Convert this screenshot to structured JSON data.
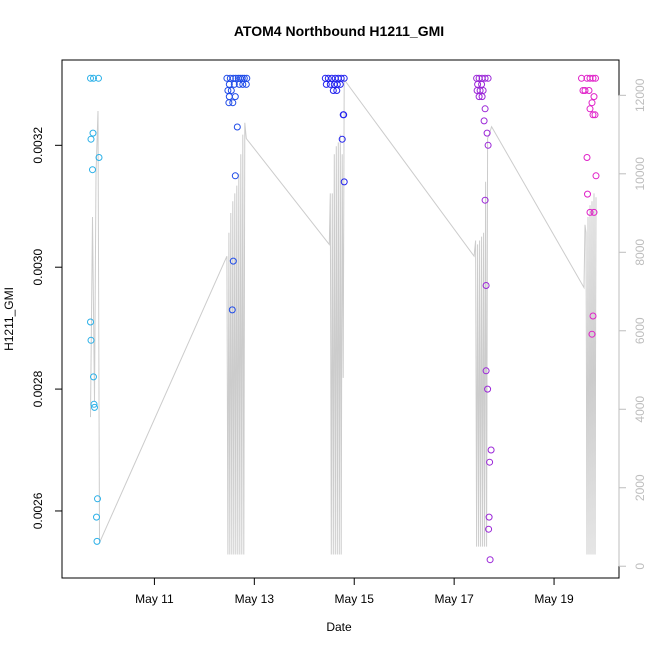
{
  "chart_data": {
    "type": "scatter",
    "title": "ATOM4 Northbound H1211_GMI",
    "xlabel": "Date",
    "ylabel": "H1211_GMI",
    "x_ticks": [
      {
        "value": 11,
        "label": "May 11"
      },
      {
        "value": 13,
        "label": "May 13"
      },
      {
        "value": 15,
        "label": "May 15"
      },
      {
        "value": 17,
        "label": "May 17"
      },
      {
        "value": 19,
        "label": "May 19"
      }
    ],
    "xlim": [
      9.15,
      20.3
    ],
    "y_left": {
      "ticks": [
        0.0026,
        0.0028,
        0.003,
        0.0032
      ],
      "tick_labels": [
        "0.0026",
        "0.0028",
        "0.0030",
        "0.0032"
      ],
      "range": [
        0.00249,
        0.00334
      ]
    },
    "y_right": {
      "ticks": [
        0,
        2000,
        4000,
        6000,
        8000,
        10000,
        12000
      ],
      "tick_labels": [
        "0",
        "2000",
        "4000",
        "6000",
        "8000",
        "10000",
        "12000"
      ],
      "range": [
        -300,
        12900
      ],
      "color": "#bdbdbd"
    },
    "grid": false,
    "legend": "none",
    "series": [
      {
        "color": "#2ab0e8",
        "points": [
          [
            9.72,
            0.00331
          ],
          [
            9.78,
            0.00331
          ],
          [
            9.88,
            0.00331
          ],
          [
            9.77,
            0.00322
          ],
          [
            9.73,
            0.00321
          ],
          [
            9.89,
            0.00318
          ],
          [
            9.76,
            0.00316
          ],
          [
            9.72,
            0.00291
          ],
          [
            9.73,
            0.00288
          ],
          [
            9.78,
            0.00282
          ],
          [
            9.79,
            0.002775
          ],
          [
            9.8,
            0.00277
          ],
          [
            9.86,
            0.00262
          ],
          [
            9.84,
            0.00259
          ],
          [
            9.85,
            0.00255
          ]
        ]
      },
      {
        "color": "#1f4be8",
        "points": [
          [
            12.45,
            0.00331
          ],
          [
            12.52,
            0.00331
          ],
          [
            12.58,
            0.00331
          ],
          [
            12.63,
            0.00331
          ],
          [
            12.68,
            0.00331
          ],
          [
            12.72,
            0.00331
          ],
          [
            12.76,
            0.00331
          ],
          [
            12.8,
            0.00331
          ],
          [
            12.85,
            0.00331
          ],
          [
            12.5,
            0.0033
          ],
          [
            12.6,
            0.0033
          ],
          [
            12.7,
            0.0033
          ],
          [
            12.77,
            0.0033
          ],
          [
            12.84,
            0.0033
          ],
          [
            12.47,
            0.00329
          ],
          [
            12.54,
            0.00329
          ],
          [
            12.62,
            0.00328
          ],
          [
            12.5,
            0.00328
          ],
          [
            12.57,
            0.00327
          ],
          [
            12.66,
            0.00323
          ],
          [
            12.62,
            0.00315
          ],
          [
            12.58,
            0.00301
          ],
          [
            12.56,
            0.00293
          ],
          [
            12.49,
            0.00327
          ]
        ]
      },
      {
        "color": "#2222ee",
        "points": [
          [
            14.42,
            0.00331
          ],
          [
            14.48,
            0.00331
          ],
          [
            14.55,
            0.00331
          ],
          [
            14.62,
            0.00331
          ],
          [
            14.68,
            0.00331
          ],
          [
            14.74,
            0.00331
          ],
          [
            14.8,
            0.00331
          ],
          [
            14.44,
            0.0033
          ],
          [
            14.52,
            0.0033
          ],
          [
            14.6,
            0.0033
          ],
          [
            14.66,
            0.0033
          ],
          [
            14.72,
            0.0033
          ],
          [
            14.58,
            0.00329
          ],
          [
            14.65,
            0.00329
          ],
          [
            14.78,
            0.00325
          ],
          [
            14.79,
            0.00325
          ],
          [
            14.76,
            0.00321
          ],
          [
            14.8,
            0.00314
          ]
        ]
      },
      {
        "color": "#9b27d8",
        "points": [
          [
            17.45,
            0.00331
          ],
          [
            17.5,
            0.00331
          ],
          [
            17.56,
            0.00331
          ],
          [
            17.62,
            0.00331
          ],
          [
            17.68,
            0.00331
          ],
          [
            17.47,
            0.0033
          ],
          [
            17.55,
            0.0033
          ],
          [
            17.46,
            0.00329
          ],
          [
            17.52,
            0.00329
          ],
          [
            17.58,
            0.00329
          ],
          [
            17.5,
            0.00328
          ],
          [
            17.56,
            0.00328
          ],
          [
            17.62,
            0.00326
          ],
          [
            17.6,
            0.00324
          ],
          [
            17.66,
            0.00322
          ],
          [
            17.68,
            0.0032
          ],
          [
            17.62,
            0.00311
          ],
          [
            17.64,
            0.00297
          ],
          [
            17.64,
            0.00283
          ],
          [
            17.67,
            0.0028
          ],
          [
            17.74,
            0.0027
          ],
          [
            17.71,
            0.00268
          ],
          [
            17.7,
            0.00259
          ],
          [
            17.69,
            0.00257
          ],
          [
            17.72,
            0.00252
          ]
        ]
      },
      {
        "color": "#e020c8",
        "points": [
          [
            19.55,
            0.00331
          ],
          [
            19.66,
            0.00331
          ],
          [
            19.72,
            0.00331
          ],
          [
            19.78,
            0.00331
          ],
          [
            19.83,
            0.00331
          ],
          [
            19.58,
            0.00329
          ],
          [
            19.62,
            0.00329
          ],
          [
            19.7,
            0.00329
          ],
          [
            19.8,
            0.00328
          ],
          [
            19.76,
            0.00327
          ],
          [
            19.72,
            0.00326
          ],
          [
            19.78,
            0.00325
          ],
          [
            19.82,
            0.00325
          ],
          [
            19.66,
            0.00318
          ],
          [
            19.84,
            0.00315
          ],
          [
            19.67,
            0.00312
          ],
          [
            19.72,
            0.00309
          ],
          [
            19.8,
            0.00309
          ],
          [
            19.78,
            0.00292
          ],
          [
            19.76,
            0.00289
          ]
        ]
      }
    ],
    "secondary_line": {
      "color": "#cccccc",
      "points": [
        [
          9.72,
          3800
        ],
        [
          9.76,
          8900
        ],
        [
          9.8,
          4200
        ],
        [
          9.83,
          10000
        ],
        [
          9.87,
          11600
        ],
        [
          9.9,
          600
        ],
        [
          12.45,
          7900
        ],
        [
          12.47,
          300
        ],
        [
          12.49,
          8500
        ],
        [
          12.51,
          300
        ],
        [
          12.53,
          9000
        ],
        [
          12.55,
          300
        ],
        [
          12.57,
          9300
        ],
        [
          12.59,
          300
        ],
        [
          12.61,
          9500
        ],
        [
          12.63,
          300
        ],
        [
          12.65,
          9700
        ],
        [
          12.67,
          300
        ],
        [
          12.69,
          10000
        ],
        [
          12.71,
          300
        ],
        [
          12.73,
          10500
        ],
        [
          12.75,
          300
        ],
        [
          12.77,
          11000
        ],
        [
          12.79,
          300
        ],
        [
          12.81,
          11300
        ],
        [
          12.84,
          10900
        ],
        [
          14.5,
          8200
        ],
        [
          14.52,
          9500
        ],
        [
          14.54,
          300
        ],
        [
          14.56,
          9500
        ],
        [
          14.58,
          300
        ],
        [
          14.6,
          10500
        ],
        [
          14.62,
          300
        ],
        [
          14.64,
          10700
        ],
        [
          14.66,
          300
        ],
        [
          14.68,
          10800
        ],
        [
          14.7,
          300
        ],
        [
          14.72,
          11000
        ],
        [
          14.74,
          300
        ],
        [
          14.76,
          10500
        ],
        [
          14.78,
          4800
        ],
        [
          14.8,
          12400
        ],
        [
          17.4,
          7900
        ],
        [
          17.43,
          8300
        ],
        [
          17.45,
          500
        ],
        [
          17.47,
          8200
        ],
        [
          17.49,
          500
        ],
        [
          17.51,
          8300
        ],
        [
          17.53,
          500
        ],
        [
          17.55,
          8400
        ],
        [
          17.57,
          500
        ],
        [
          17.59,
          8500
        ],
        [
          17.61,
          500
        ],
        [
          17.63,
          9800
        ],
        [
          17.65,
          500
        ],
        [
          17.67,
          10900
        ],
        [
          17.7,
          11000
        ],
        [
          17.75,
          11200
        ],
        [
          19.6,
          7100
        ],
        [
          19.62,
          8700
        ],
        [
          19.64,
          8500
        ],
        [
          19.66,
          300
        ],
        [
          19.68,
          8900
        ],
        [
          19.7,
          300
        ],
        [
          19.72,
          9200
        ],
        [
          19.74,
          300
        ],
        [
          19.76,
          9300
        ],
        [
          19.78,
          300
        ],
        [
          19.8,
          9500
        ],
        [
          19.82,
          300
        ],
        [
          19.84,
          9400
        ]
      ]
    }
  }
}
